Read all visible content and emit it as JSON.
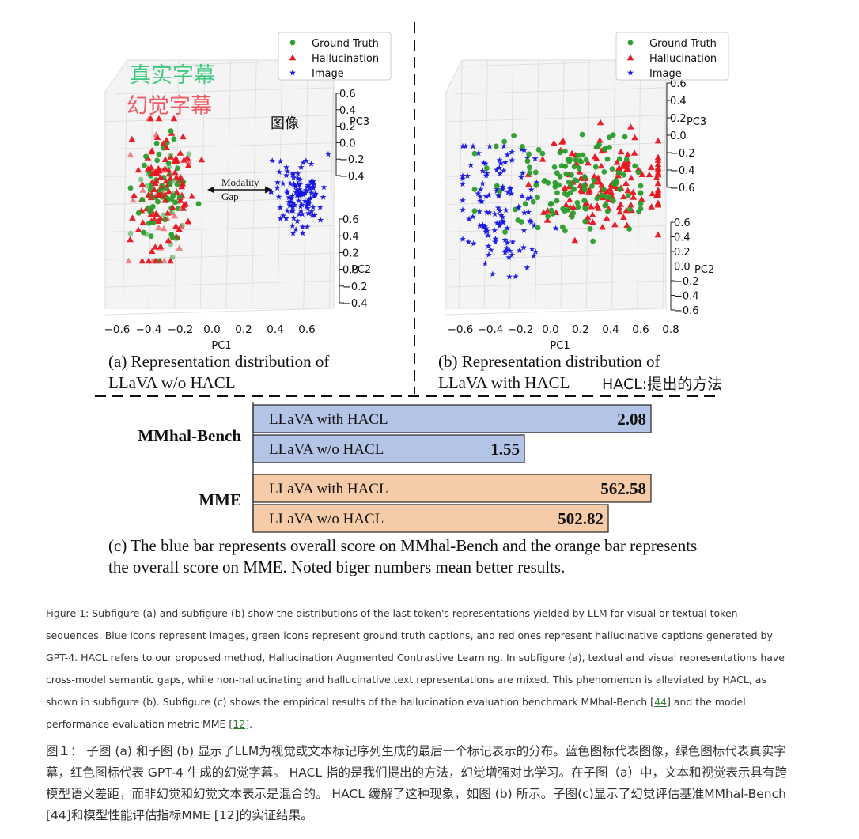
{
  "colors": {
    "ground_truth": "#2a9d2a",
    "hallucination": "#e8141e",
    "image": "#1515e0",
    "bar_blue": "#b4c4e6",
    "bar_orange": "#f5cba8"
  },
  "annotations": {
    "zh_ground_truth": "真实字幕",
    "zh_hallucination": "幻觉字幕",
    "zh_image": "图像",
    "modality_gap": [
      "Modality",
      "Gap"
    ],
    "hacl_note": "HACL:提出的方法"
  },
  "chart_data": [
    {
      "type": "scatter",
      "panel": "a",
      "legend": [
        "Ground Truth",
        "Hallucination",
        "Image"
      ],
      "legend_placement": "top-right",
      "xlabel": "PC1",
      "x_ticks": [
        "−0.6",
        "−0.4",
        "−0.2",
        "0.0",
        "0.2",
        "0.4",
        "0.6"
      ],
      "pc3_label": "PC3",
      "pc3_ticks": [
        "0.6",
        "0.4",
        "0.2",
        "0.0",
        "−0.2",
        "−0.4"
      ],
      "pc2_label": "PC2",
      "pc2_ticks": [
        "0.6",
        "0.4",
        "0.2",
        "0.0",
        "−0.2",
        "−0.4"
      ],
      "caption": [
        "(a) Representation distribution of",
        "LLaVA w/o HACL"
      ],
      "clusters": {
        "ground_truth": {
          "x_range": [
            -0.45,
            -0.15
          ]
        },
        "hallucination": {
          "x_range": [
            -0.45,
            -0.15
          ]
        },
        "image": {
          "x_range": [
            0.35,
            0.65
          ]
        }
      }
    },
    {
      "type": "scatter",
      "panel": "b",
      "legend": [
        "Ground Truth",
        "Hallucination",
        "Image"
      ],
      "legend_placement": "top-right",
      "xlabel": "PC1",
      "x_ticks": [
        "−0.6",
        "−0.4",
        "−0.2",
        "0.0",
        "0.2",
        "0.4",
        "0.6",
        "0.8"
      ],
      "pc3_label": "PC3",
      "pc3_ticks": [
        "0.6",
        "0.4",
        "0.2",
        "0.0",
        "−0.2",
        "−0.4",
        "−0.6"
      ],
      "pc2_label": "PC2",
      "pc2_ticks": [
        "0.6",
        "0.4",
        "0.2",
        "0.0",
        "−0.2",
        "−0.4",
        "−0.6"
      ],
      "caption": [
        "(b) Representation distribution of",
        "LLaVA with HACL"
      ],
      "clusters": {
        "ground_truth": {
          "x_range": [
            -0.3,
            0.5
          ]
        },
        "hallucination": {
          "x_range": [
            -0.1,
            0.75
          ]
        },
        "image": {
          "x_range": [
            -0.55,
            0.1
          ]
        }
      }
    },
    {
      "type": "bar",
      "panel": "c",
      "orientation": "horizontal",
      "groups": [
        {
          "name": "MMhal-Bench",
          "color": "blue",
          "bars": [
            {
              "label": "LLaVA with HACL",
              "value": 2.08,
              "value_label": "2.08"
            },
            {
              "label": "LLaVA w/o HACL",
              "value": 1.55,
              "value_label": "1.55"
            }
          ]
        },
        {
          "name": "MME",
          "color": "orange",
          "bars": [
            {
              "label": "LLaVA with HACL",
              "value": 562.58,
              "value_label": "562.58"
            },
            {
              "label": "LLaVA w/o HACL",
              "value": 502.82,
              "value_label": "502.82"
            }
          ]
        }
      ],
      "caption": [
        "(c) The blue bar represents overall score on MMhal-Bench and the orange bar represents",
        "the overall score on MME. Noted biger numbers mean better results."
      ]
    }
  ],
  "caption_en": {
    "before_ref1": "Figure 1: Subfigure (a) and subfigure (b) show the distributions of the last token's representations yielded by LLM for visual or textual token sequences. Blue icons represent images, green icons represent ground truth captions, and red ones represent hallucinative captions generated by GPT-4. HACL refers to our proposed method, Hallucination Augmented Contrastive Learning. In subfigure (a), textual and visual representations have cross-model semantic gaps, while non-hallucinating and hallucinative text representations are mixed. This phenomenon is alleviated by HACL, as shown in subfigure (b). Subfigure (c) shows the empirical results of the hallucination evaluation benchmark MMhal-Bench [",
    "ref1": "44",
    "between": "] and the model performance evaluation metric MME [",
    "ref2": "12",
    "after": "]."
  },
  "caption_zh": "图１： 子图 (a) 和子图 (b) 显示了LLM为视觉或文本标记序列生成的最后一个标记表示的分布。蓝色图标代表图像，绿色图标代表真实字幕，红色图标代表 GPT-4 生成的幻觉字幕。 HACL 指的是我们提出的方法，幻觉增强对比学习。在子图（a）中，文本和视觉表示具有跨模型语义差距，而非幻觉和幻觉文本表示是混合的。 HACL 缓解了这种现象，如图 (b) 所示。子图(c)显示了幻觉评估基准MMhal-Bench [44]和模型性能评估指标MME [12]的实证结果。"
}
